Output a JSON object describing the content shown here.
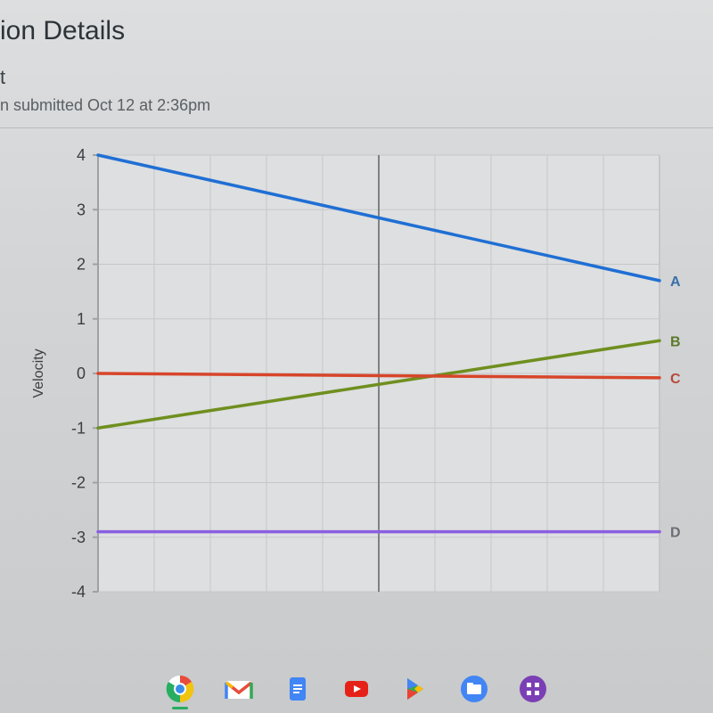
{
  "header": {
    "title": "ion Details",
    "subtitle": "t",
    "meta": "n submitted Oct 12 at 2:36pm"
  },
  "chart": {
    "type": "line",
    "ylabel": "Velocity",
    "label_fontsize": 14,
    "xlim": [
      0,
      10
    ],
    "ylim": [
      -4,
      4
    ],
    "ytick_step": 1,
    "yticks": [
      4,
      3,
      2,
      1,
      0,
      -1,
      -2,
      -3,
      -4
    ],
    "grid_color": "#c5c7c9",
    "axis_color": "#9fa2a4",
    "background_color": "#dddfe0",
    "line_width": 3.5,
    "series": [
      {
        "label": "A",
        "color": "#1f6fd4",
        "label_color": "#3a6fa8",
        "x": [
          0,
          10
        ],
        "y": [
          4.0,
          1.7
        ]
      },
      {
        "label": "B",
        "color": "#6f8f1f",
        "label_color": "#5c7a2a",
        "x": [
          0,
          10
        ],
        "y": [
          -1.0,
          0.6
        ]
      },
      {
        "label": "C",
        "color": "#d7452a",
        "label_color": "#b84a3a",
        "x": [
          0,
          10
        ],
        "y": [
          0.0,
          -0.08
        ]
      },
      {
        "label": "D",
        "color": "#8a5fe0",
        "label_color": "#6b6e72",
        "x": [
          0,
          10
        ],
        "y": [
          -2.9,
          -2.9
        ]
      }
    ],
    "series_label_fontsize": 16,
    "divider_x": 5,
    "divider_color": "#7f8284"
  },
  "taskbar": {
    "icons": [
      "chrome",
      "gmail",
      "docs",
      "youtube",
      "play",
      "files",
      "grid"
    ]
  }
}
